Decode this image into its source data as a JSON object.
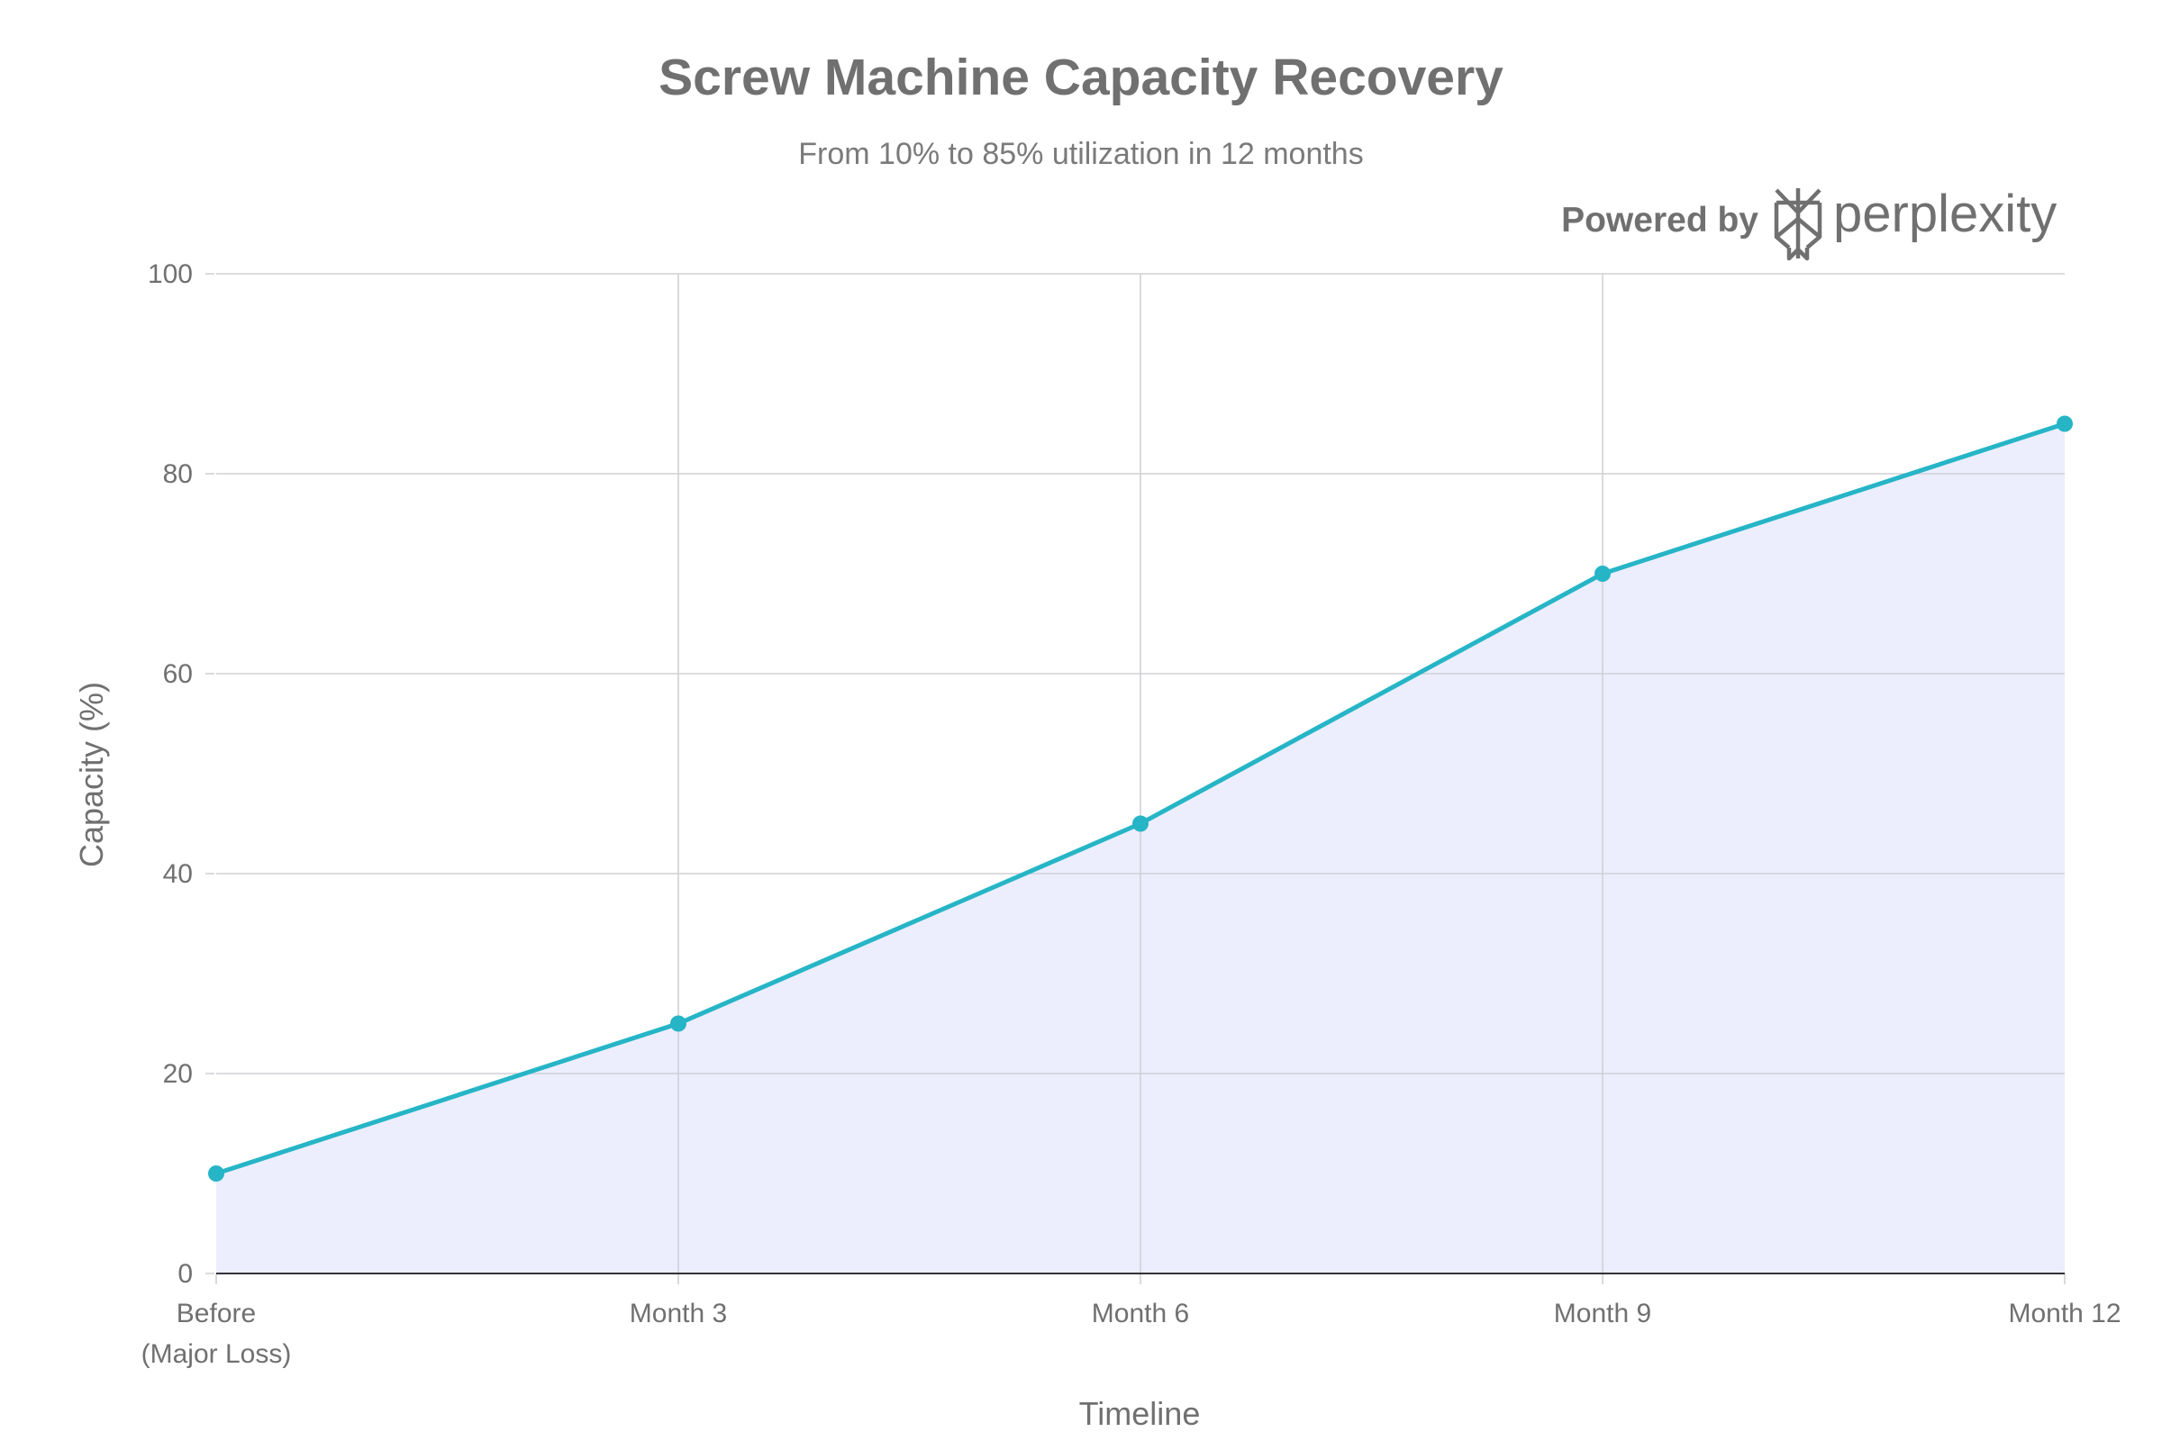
{
  "header": {
    "title": "Screw Machine Capacity Recovery",
    "subtitle": "From 10% to 85% utilization in 12 months"
  },
  "branding": {
    "powered_by": "Powered by",
    "brand_name": "perplexity",
    "logo_icon": "perplexity-logo-icon"
  },
  "colors": {
    "line": "#26b5c6",
    "marker": "#26b5c6",
    "area_fill": "#eceefe",
    "grid": "#d0d0d6",
    "axis": "#333333",
    "text": "#707070"
  },
  "chart_data": {
    "type": "area",
    "title": "Screw Machine Capacity Recovery",
    "subtitle": "From 10% to 85% utilization in 12 months",
    "xlabel": "Timeline",
    "ylabel": "Capacity (%)",
    "categories": [
      "Before\n(Major Loss)",
      "Month 3",
      "Month 6",
      "Month 9",
      "Month 12"
    ],
    "series": [
      {
        "values": [
          10,
          25,
          45,
          70,
          85
        ]
      }
    ],
    "ylim": [
      0,
      100
    ],
    "yticks": [
      0,
      20,
      40,
      60,
      80,
      100
    ],
    "grid": true,
    "markers": true
  }
}
